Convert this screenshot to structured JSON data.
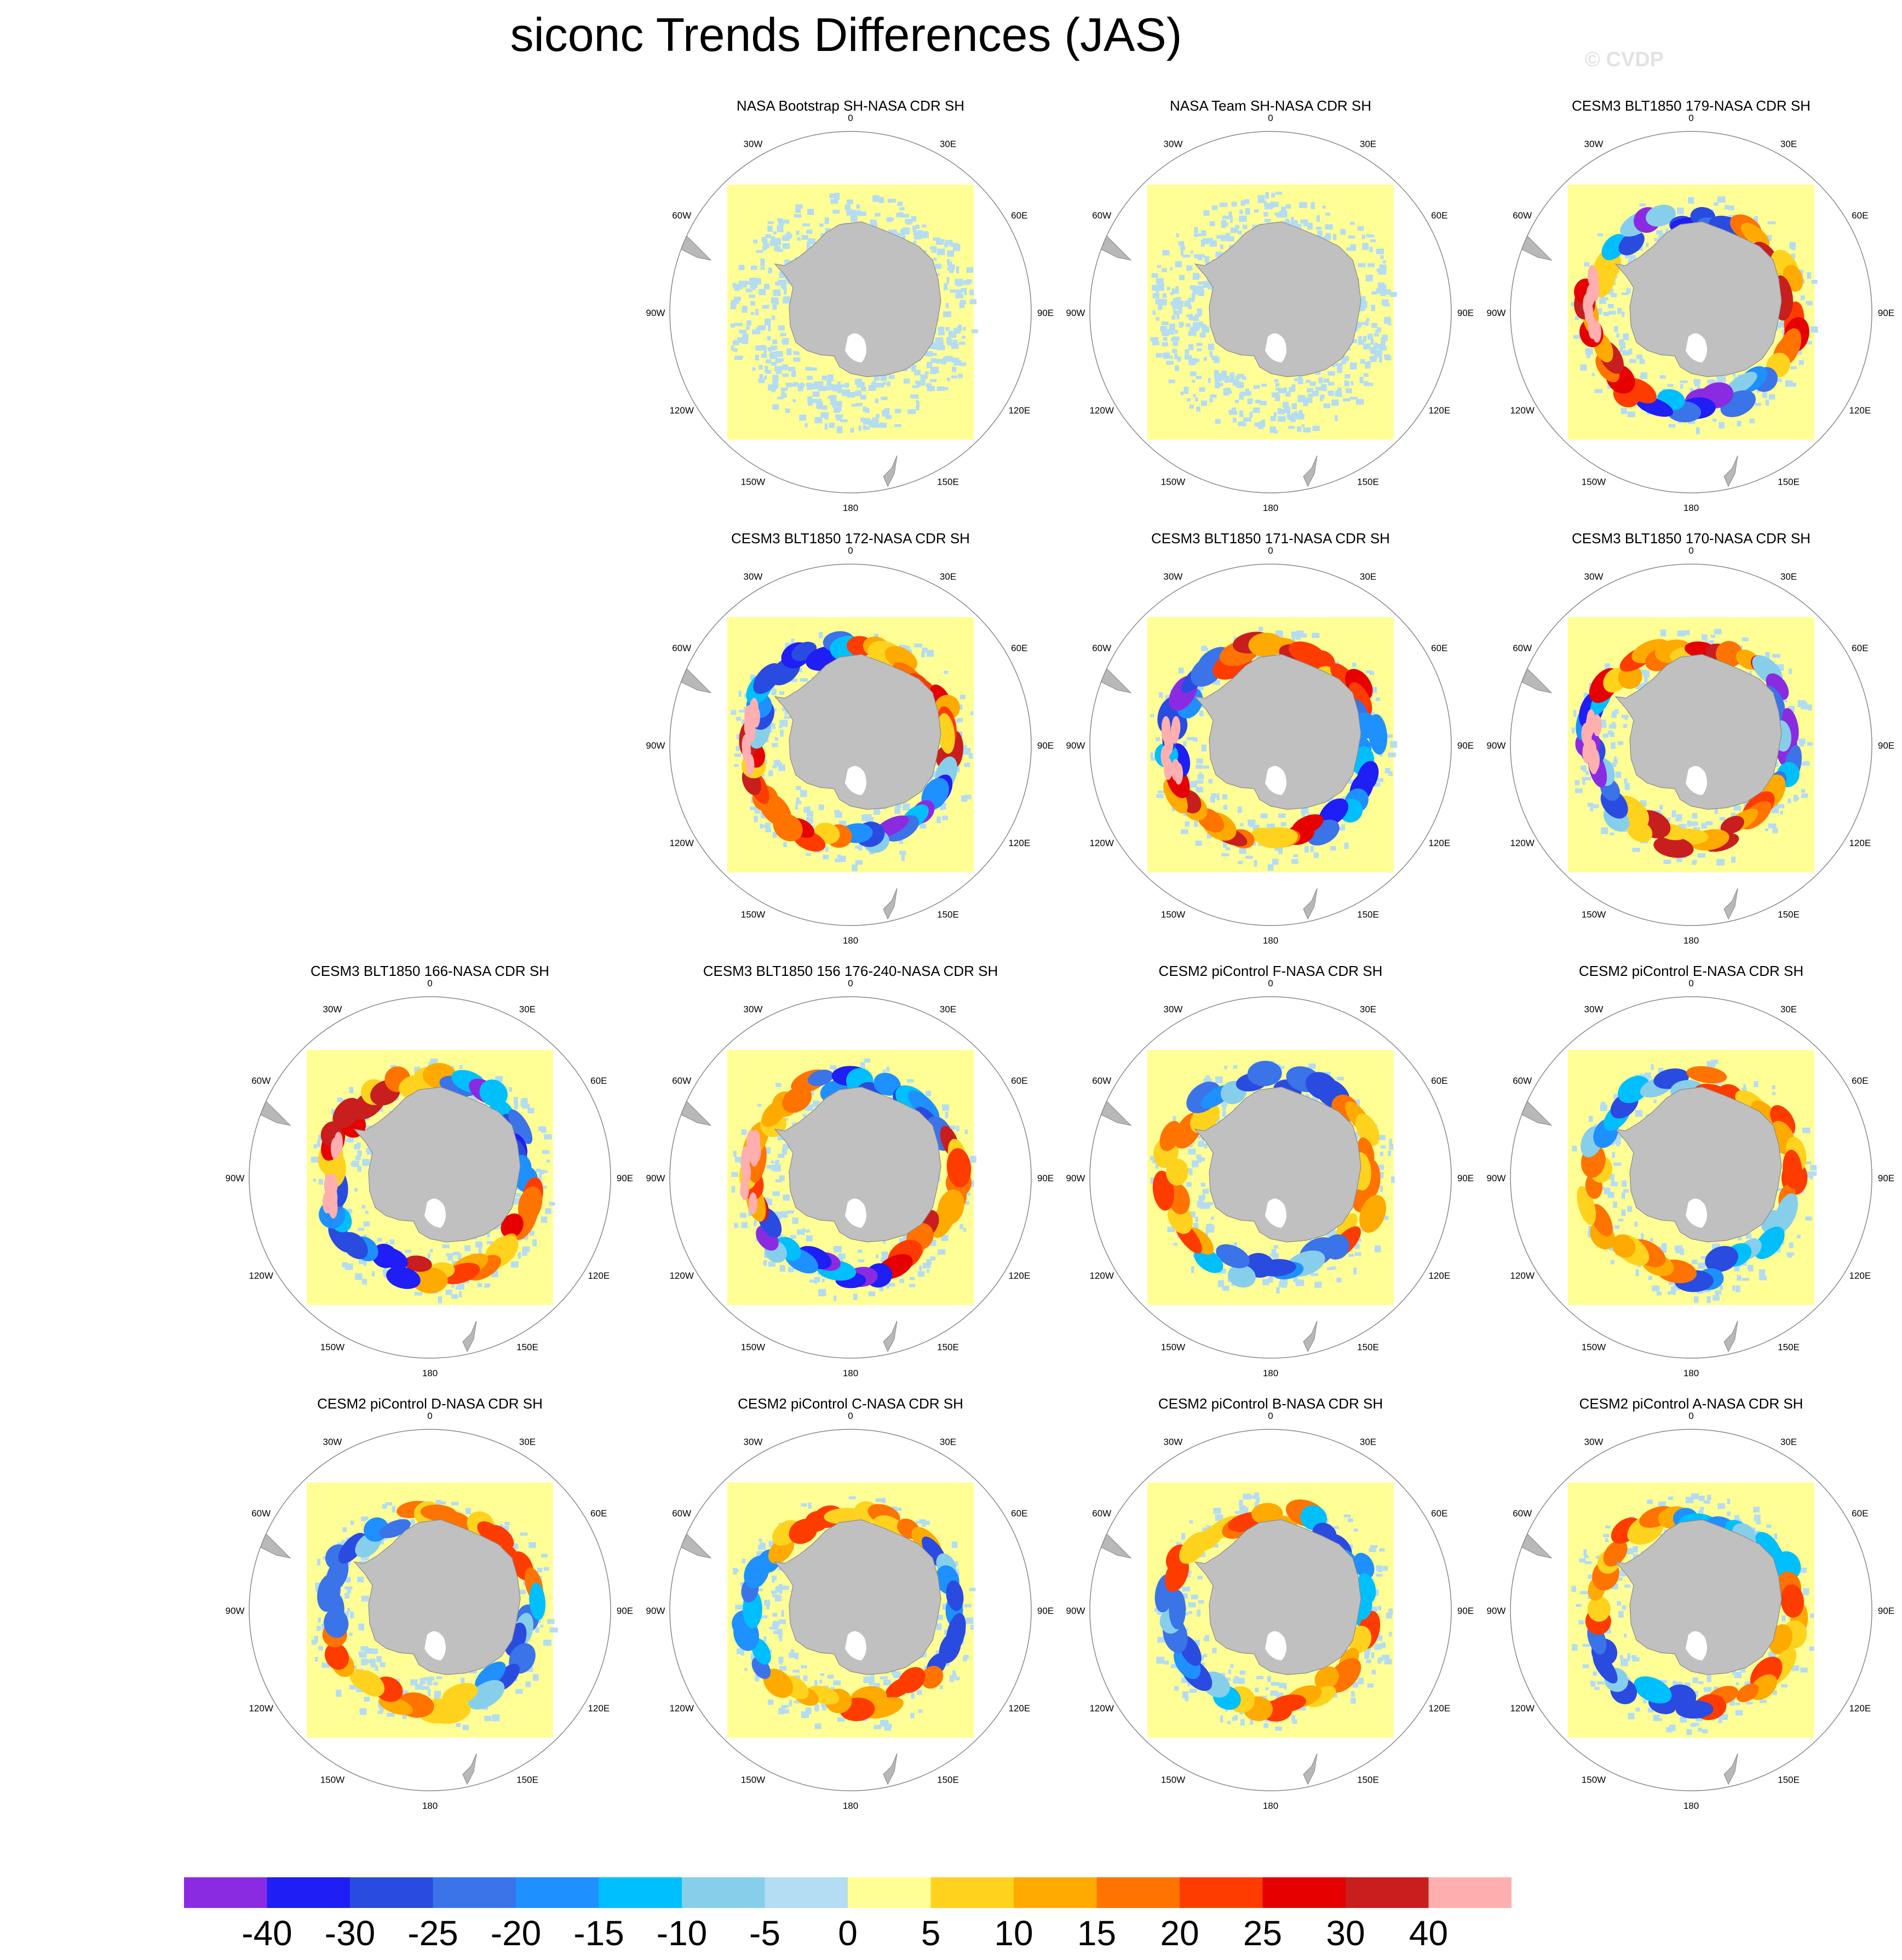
{
  "title": "siconc Trends Differences (JAS)",
  "watermark": "© CVDP",
  "lon_labels": [
    "0",
    "30E",
    "60E",
    "90E",
    "120E",
    "150E",
    "180",
    "150W",
    "120W",
    "90W",
    "60W",
    "30W"
  ],
  "chart_data": {
    "type": "heatmap",
    "projection": "south-polar-stereographic",
    "variable": "siconc",
    "season": "JAS",
    "colorbar": {
      "tick_labels": [
        "-40",
        "-30",
        "-25",
        "-20",
        "-15",
        "-10",
        "-5",
        "0",
        "5",
        "10",
        "15",
        "20",
        "25",
        "30",
        "40"
      ],
      "colors": [
        "#8a2be2",
        "#1e1ef5",
        "#2a4be0",
        "#3b73e8",
        "#1e90ff",
        "#00bfff",
        "#87ceeb",
        "#b4dcf2",
        "#ffff96",
        "#ffd21e",
        "#ffaa00",
        "#ff7300",
        "#ff3c00",
        "#e60000",
        "#c81e1e",
        "#ffafaf"
      ]
    },
    "panels": [
      {
        "title": "NASA Bootstrap SH-NASA CDR SH",
        "row": 0,
        "col": 1,
        "pattern": "weak"
      },
      {
        "title": "NASA Team SH-NASA CDR SH",
        "row": 0,
        "col": 2,
        "pattern": "weak"
      },
      {
        "title": "CESM3 BLT1850 179-NASA CDR SH",
        "row": 0,
        "col": 3,
        "pattern": "strong"
      },
      {
        "title": "CESM3 BLT1850 172-NASA CDR SH",
        "row": 1,
        "col": 1,
        "pattern": "strong"
      },
      {
        "title": "CESM3 BLT1850 171-NASA CDR SH",
        "row": 1,
        "col": 2,
        "pattern": "strong"
      },
      {
        "title": "CESM3 BLT1850 170-NASA CDR SH",
        "row": 1,
        "col": 3,
        "pattern": "strong"
      },
      {
        "title": "CESM3 BLT1850 166-NASA CDR SH",
        "row": 2,
        "col": 0,
        "pattern": "strong"
      },
      {
        "title": "CESM3 BLT1850 156 176-240-NASA CDR SH",
        "row": 2,
        "col": 1,
        "pattern": "strong"
      },
      {
        "title": "CESM2 piControl F-NASA CDR SH",
        "row": 2,
        "col": 2,
        "pattern": "moderate"
      },
      {
        "title": "CESM2 piControl E-NASA CDR SH",
        "row": 2,
        "col": 3,
        "pattern": "moderate"
      },
      {
        "title": "CESM2 piControl D-NASA CDR SH",
        "row": 3,
        "col": 0,
        "pattern": "moderate"
      },
      {
        "title": "CESM2 piControl C-NASA CDR SH",
        "row": 3,
        "col": 1,
        "pattern": "moderate"
      },
      {
        "title": "CESM2 piControl B-NASA CDR SH",
        "row": 3,
        "col": 2,
        "pattern": "moderate"
      },
      {
        "title": "CESM2 piControl A-NASA CDR SH",
        "row": 3,
        "col": 3,
        "pattern": "moderate"
      }
    ]
  }
}
